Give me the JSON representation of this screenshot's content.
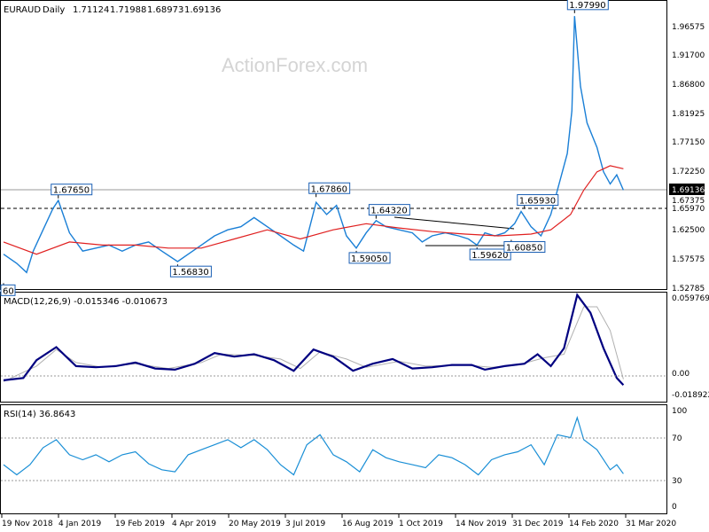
{
  "chart_data": {
    "type": "line",
    "symbol": "EURAUD",
    "timeframe": "Daily",
    "ohlc": [
      "1.71124",
      "1.71988",
      "1.68973",
      "1.69136"
    ],
    "watermark": "ActionForex.com",
    "x_tick_labels": [
      "19 Nov 2018",
      "4 Jan 2019",
      "19 Feb 2019",
      "4 Apr 2019",
      "20 May 2019",
      "3 Jul 2019",
      "16 Aug 2019",
      "1 Oct 2019",
      "14 Nov 2019",
      "31 Dec 2019",
      "14 Feb 2020",
      "31 Mar 2020"
    ],
    "price_panel": {
      "ylim": [
        1.5279,
        2.0
      ],
      "y_ticks": [
        "1.96575",
        "1.91700",
        "1.86800",
        "1.81925",
        "1.77150",
        "1.72250",
        "1.67375",
        "1.62500",
        "1.57575",
        "1.52785"
      ],
      "last_price": "1.69136",
      "level_line": "1.65970",
      "annotations": [
        {
          "text": "1.97990",
          "x": 0.866,
          "price": 1.9799
        },
        {
          "text": "1.67650",
          "x": 0.083,
          "price": 1.6765
        },
        {
          "text": "1.67860",
          "x": 0.474,
          "price": 1.6786
        },
        {
          "text": "1.64320",
          "x": 0.565,
          "price": 1.6432
        },
        {
          "text": "1.59050",
          "x": 0.535,
          "price": 1.5905
        },
        {
          "text": "1.56830",
          "x": 0.264,
          "price": 1.5683
        },
        {
          "text": "1.65930",
          "x": 0.79,
          "price": 1.6593
        },
        {
          "text": "1.59620",
          "x": 0.718,
          "price": 1.5962
        },
        {
          "text": "1.60850",
          "x": 0.77,
          "price": 1.6085
        },
        {
          "text": "60",
          "x": 0.0,
          "price": 1.5376
        }
      ],
      "price_series": [
        [
          0.0,
          1.585
        ],
        [
          0.02,
          1.57
        ],
        [
          0.035,
          1.555
        ],
        [
          0.045,
          1.59
        ],
        [
          0.06,
          1.625
        ],
        [
          0.075,
          1.66
        ],
        [
          0.083,
          1.673
        ],
        [
          0.1,
          1.62
        ],
        [
          0.12,
          1.59
        ],
        [
          0.14,
          1.595
        ],
        [
          0.16,
          1.6
        ],
        [
          0.18,
          1.59
        ],
        [
          0.2,
          1.6
        ],
        [
          0.22,
          1.605
        ],
        [
          0.24,
          1.59
        ],
        [
          0.264,
          1.573
        ],
        [
          0.28,
          1.585
        ],
        [
          0.3,
          1.6
        ],
        [
          0.32,
          1.615
        ],
        [
          0.34,
          1.625
        ],
        [
          0.36,
          1.63
        ],
        [
          0.38,
          1.645
        ],
        [
          0.4,
          1.63
        ],
        [
          0.42,
          1.615
        ],
        [
          0.44,
          1.6
        ],
        [
          0.455,
          1.59
        ],
        [
          0.474,
          1.67
        ],
        [
          0.49,
          1.65
        ],
        [
          0.505,
          1.665
        ],
        [
          0.52,
          1.615
        ],
        [
          0.535,
          1.595
        ],
        [
          0.55,
          1.62
        ],
        [
          0.565,
          1.64
        ],
        [
          0.58,
          1.63
        ],
        [
          0.6,
          1.625
        ],
        [
          0.62,
          1.62
        ],
        [
          0.635,
          1.605
        ],
        [
          0.65,
          1.615
        ],
        [
          0.67,
          1.62
        ],
        [
          0.69,
          1.615
        ],
        [
          0.705,
          1.61
        ],
        [
          0.718,
          1.6
        ],
        [
          0.73,
          1.62
        ],
        [
          0.745,
          1.615
        ],
        [
          0.76,
          1.62
        ],
        [
          0.775,
          1.635
        ],
        [
          0.785,
          1.655
        ],
        [
          0.8,
          1.63
        ],
        [
          0.815,
          1.615
        ],
        [
          0.83,
          1.65
        ],
        [
          0.845,
          1.71
        ],
        [
          0.855,
          1.75
        ],
        [
          0.862,
          1.82
        ],
        [
          0.866,
          1.975
        ],
        [
          0.875,
          1.86
        ],
        [
          0.885,
          1.8
        ],
        [
          0.9,
          1.76
        ],
        [
          0.91,
          1.72
        ],
        [
          0.92,
          1.7
        ],
        [
          0.93,
          1.715
        ],
        [
          0.94,
          1.69
        ]
      ],
      "ma_series": [
        [
          0.0,
          1.605
        ],
        [
          0.05,
          1.585
        ],
        [
          0.1,
          1.605
        ],
        [
          0.15,
          1.6
        ],
        [
          0.2,
          1.6
        ],
        [
          0.25,
          1.595
        ],
        [
          0.3,
          1.595
        ],
        [
          0.35,
          1.61
        ],
        [
          0.4,
          1.625
        ],
        [
          0.45,
          1.61
        ],
        [
          0.5,
          1.625
        ],
        [
          0.55,
          1.635
        ],
        [
          0.6,
          1.628
        ],
        [
          0.65,
          1.622
        ],
        [
          0.7,
          1.618
        ],
        [
          0.75,
          1.615
        ],
        [
          0.8,
          1.618
        ],
        [
          0.83,
          1.625
        ],
        [
          0.86,
          1.65
        ],
        [
          0.88,
          1.69
        ],
        [
          0.9,
          1.72
        ],
        [
          0.92,
          1.73
        ],
        [
          0.94,
          1.725
        ]
      ]
    },
    "macd_panel": {
      "label": "MACD(12,26,9) -0.015346 -0.010673",
      "ylim": [
        -0.03,
        0.062
      ],
      "y_ticks": [
        "0.059769",
        "0.00",
        "-0.018922"
      ],
      "macd_series": [
        [
          0.0,
          -0.012
        ],
        [
          0.03,
          -0.01
        ],
        [
          0.05,
          0.005
        ],
        [
          0.08,
          0.016
        ],
        [
          0.11,
          0.0
        ],
        [
          0.14,
          -0.001
        ],
        [
          0.17,
          0.0
        ],
        [
          0.2,
          0.003
        ],
        [
          0.23,
          -0.002
        ],
        [
          0.26,
          -0.003
        ],
        [
          0.29,
          0.002
        ],
        [
          0.32,
          0.011
        ],
        [
          0.35,
          0.008
        ],
        [
          0.38,
          0.01
        ],
        [
          0.41,
          0.005
        ],
        [
          0.44,
          -0.004
        ],
        [
          0.47,
          0.014
        ],
        [
          0.5,
          0.008
        ],
        [
          0.53,
          -0.004
        ],
        [
          0.56,
          0.002
        ],
        [
          0.59,
          0.006
        ],
        [
          0.62,
          -0.002
        ],
        [
          0.65,
          -0.001
        ],
        [
          0.68,
          0.001
        ],
        [
          0.71,
          0.001
        ],
        [
          0.73,
          -0.003
        ],
        [
          0.76,
          0.0
        ],
        [
          0.79,
          0.002
        ],
        [
          0.81,
          0.01
        ],
        [
          0.83,
          0.0
        ],
        [
          0.85,
          0.015
        ],
        [
          0.87,
          0.06
        ],
        [
          0.89,
          0.045
        ],
        [
          0.91,
          0.015
        ],
        [
          0.93,
          -0.01
        ],
        [
          0.94,
          -0.016
        ]
      ],
      "signal_series": [
        [
          0.0,
          -0.013
        ],
        [
          0.05,
          0.0
        ],
        [
          0.08,
          0.014
        ],
        [
          0.11,
          0.003
        ],
        [
          0.15,
          -0.001
        ],
        [
          0.2,
          0.002
        ],
        [
          0.25,
          -0.002
        ],
        [
          0.3,
          0.003
        ],
        [
          0.33,
          0.01
        ],
        [
          0.38,
          0.009
        ],
        [
          0.42,
          0.006
        ],
        [
          0.45,
          -0.002
        ],
        [
          0.48,
          0.012
        ],
        [
          0.52,
          0.006
        ],
        [
          0.55,
          -0.001
        ],
        [
          0.6,
          0.004
        ],
        [
          0.64,
          0.0
        ],
        [
          0.7,
          0.001
        ],
        [
          0.74,
          -0.001
        ],
        [
          0.78,
          0.001
        ],
        [
          0.82,
          0.007
        ],
        [
          0.85,
          0.01
        ],
        [
          0.88,
          0.05
        ],
        [
          0.9,
          0.05
        ],
        [
          0.92,
          0.03
        ],
        [
          0.94,
          -0.011
        ]
      ]
    },
    "rsi_panel": {
      "label": "RSI(14) 36.8643",
      "ylim": [
        0,
        100
      ],
      "y_ticks": [
        "100",
        "70",
        "30",
        "0"
      ],
      "levels": [
        70,
        30
      ],
      "rsi_series": [
        [
          0.0,
          45
        ],
        [
          0.02,
          35
        ],
        [
          0.04,
          45
        ],
        [
          0.06,
          62
        ],
        [
          0.08,
          70
        ],
        [
          0.1,
          55
        ],
        [
          0.12,
          50
        ],
        [
          0.14,
          55
        ],
        [
          0.16,
          48
        ],
        [
          0.18,
          55
        ],
        [
          0.2,
          58
        ],
        [
          0.22,
          46
        ],
        [
          0.24,
          40
        ],
        [
          0.26,
          38
        ],
        [
          0.28,
          55
        ],
        [
          0.3,
          60
        ],
        [
          0.32,
          65
        ],
        [
          0.34,
          70
        ],
        [
          0.36,
          62
        ],
        [
          0.38,
          70
        ],
        [
          0.4,
          60
        ],
        [
          0.42,
          45
        ],
        [
          0.44,
          35
        ],
        [
          0.46,
          65
        ],
        [
          0.48,
          75
        ],
        [
          0.5,
          55
        ],
        [
          0.52,
          48
        ],
        [
          0.54,
          38
        ],
        [
          0.56,
          60
        ],
        [
          0.58,
          52
        ],
        [
          0.6,
          48
        ],
        [
          0.62,
          45
        ],
        [
          0.64,
          42
        ],
        [
          0.66,
          55
        ],
        [
          0.68,
          52
        ],
        [
          0.7,
          45
        ],
        [
          0.72,
          35
        ],
        [
          0.74,
          50
        ],
        [
          0.76,
          55
        ],
        [
          0.78,
          58
        ],
        [
          0.8,
          65
        ],
        [
          0.82,
          45
        ],
        [
          0.84,
          75
        ],
        [
          0.86,
          72
        ],
        [
          0.87,
          92
        ],
        [
          0.88,
          70
        ],
        [
          0.9,
          60
        ],
        [
          0.92,
          40
        ],
        [
          0.93,
          45
        ],
        [
          0.94,
          36
        ]
      ]
    }
  }
}
